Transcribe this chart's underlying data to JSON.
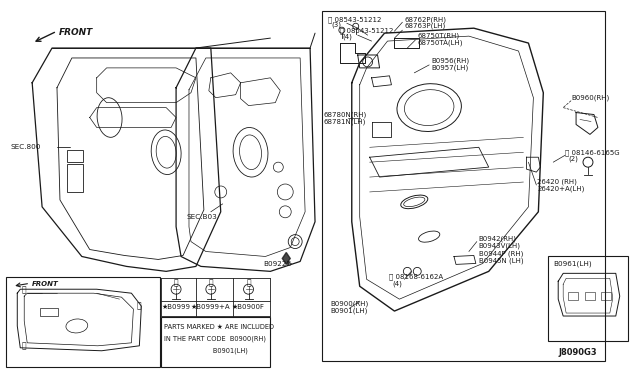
{
  "bg_color": "#ffffff",
  "line_color": "#1a1a1a",
  "figsize": [
    6.4,
    3.72
  ],
  "dpi": 100,
  "labels": {
    "front_upper": "FRONT",
    "sec800": "SEC.800",
    "sec803": "SEC.B03",
    "b0922e": "B0922E",
    "front_lower": "FRONT",
    "circ_a": "Ⓐ",
    "circ_b": "Ⓑ",
    "circ_c": "Ⓒ",
    "circ_d": "Ⓓ",
    "b08543_3": "Ⓑ 08543-51212",
    "qty3": "(3)",
    "b08543_4": "Ⓑ 08543-51212",
    "qty4": "(4)",
    "p68762": "68762P(RH)",
    "p68763": "68763P(LH)",
    "p68750t": "68750T(RH)",
    "p68750ta": "68750TA(LH)",
    "p80956": "B0956(RH)",
    "p80957": "B0957(LH)",
    "p68780n": "68780N(RH)",
    "p68781n": "68781N(LH)",
    "p80960": "B0960(RH)",
    "p08146": "Ⓢ 08146-6165G",
    "qty2": "(2)",
    "p26420": "26420 (RH)",
    "p26420a": "26420+A(LH)",
    "p80942": "B0942(RH)",
    "p80943v": "B0943V(LH)",
    "p80944p": "B0944P (RH)",
    "p80945n": "B0945N (LH)",
    "p08168": "Ⓑ 08168-6162A",
    "qty4b": "(4)",
    "p80900": "B0900(RH)",
    "p80901": "B0901(LH)",
    "p80961lh": "B0961(LH)",
    "j8090g3": "J8090G3",
    "star_b0999": "★B0999",
    "star_b0999a": "★B0999+A",
    "star_b0900f": "★B0900F",
    "parts_note1": "PARTS MARKED ★ ARE INCLUDED",
    "parts_note2": "IN THE PART CODE  B0900(RH)",
    "parts_note3": "                       B0901(LH)"
  }
}
